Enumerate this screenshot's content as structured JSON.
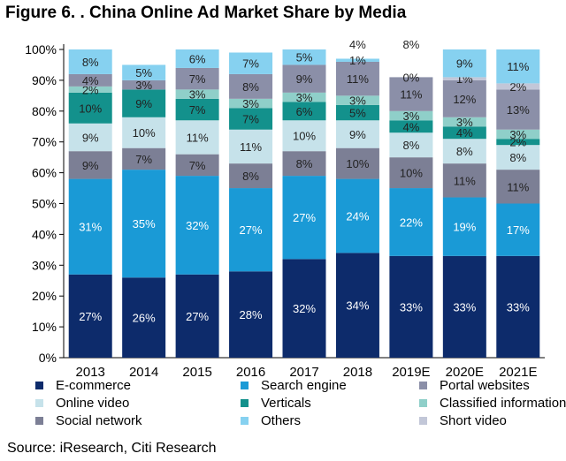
{
  "title": "Figure 6. . China Online Ad Market Share by Media",
  "source": "Source: iResearch, Citi Research",
  "colors": {
    "E-commerce": "#0d2b6b",
    "Search engine": "#1a9ad6",
    "Portal websites": "#8b8fa8",
    "Online video": "#c6e2ea",
    "Verticals": "#13918c",
    "Classified information": "#8fcfc9",
    "Social network": "#7c7f95",
    "Others": "#86d1f0",
    "Short video": "#c2c7d8"
  },
  "legend": [
    "E-commerce",
    "Search engine",
    "Portal websites",
    "Online video",
    "Verticals",
    "Classified information",
    "Social network",
    "Others",
    "Short video"
  ],
  "chart_data": {
    "type": "bar",
    "stacked": true,
    "title": "Figure 6. . China Online Ad Market Share by Media",
    "categories": [
      "2013",
      "2014",
      "2015",
      "2016",
      "2017",
      "2018",
      "2019E",
      "2020E",
      "2021E"
    ],
    "ylim": [
      0,
      100
    ],
    "yticks": [
      "0%",
      "10%",
      "20%",
      "30%",
      "40%",
      "50%",
      "60%",
      "70%",
      "80%",
      "90%",
      "100%"
    ],
    "grid": false,
    "legend_position": "bottom",
    "series": [
      {
        "name": "E-commerce",
        "values": [
          27,
          26,
          27,
          28,
          32,
          34,
          33,
          33,
          33
        ]
      },
      {
        "name": "Search engine",
        "values": [
          31,
          35,
          32,
          27,
          27,
          24,
          22,
          19,
          17
        ]
      },
      {
        "name": "Social network",
        "values": [
          9,
          7,
          7,
          8,
          8,
          10,
          10,
          11,
          11
        ]
      },
      {
        "name": "Online video",
        "values": [
          9,
          10,
          11,
          11,
          10,
          9,
          8,
          8,
          8
        ]
      },
      {
        "name": "Verticals",
        "values": [
          10,
          9,
          7,
          7,
          6,
          5,
          4,
          4,
          2
        ]
      },
      {
        "name": "Classified information",
        "values": [
          2,
          0,
          3,
          3,
          3,
          3,
          3,
          3,
          3
        ]
      },
      {
        "name": "Portal websites",
        "values": [
          4,
          3,
          7,
          8,
          9,
          11,
          11,
          12,
          13
        ]
      },
      {
        "name": "Short video",
        "values": [
          0,
          0,
          0,
          0,
          0,
          0,
          0,
          1,
          2
        ]
      },
      {
        "name": "Others",
        "values": [
          8,
          5,
          6,
          7,
          5,
          1,
          0,
          9,
          11
        ]
      }
    ],
    "data_labels": [
      [
        "27%",
        "26%",
        "27%",
        "28%",
        "32%",
        "34%",
        "33%",
        "33%",
        "33%"
      ],
      [
        "31%",
        "35%",
        "32%",
        "27%",
        "27%",
        "24%",
        "22%",
        "19%",
        "17%"
      ],
      [
        "9%",
        "7%",
        "7%",
        "8%",
        "8%",
        "10%",
        "10%",
        "11%",
        "11%"
      ],
      [
        "9%",
        "10%",
        "11%",
        "11%",
        "10%",
        "9%",
        "8%",
        "8%",
        "8%"
      ],
      [
        "10%",
        "9%",
        "7%",
        "7%",
        "6%",
        "5%",
        "4%",
        "4%",
        "2%"
      ],
      [
        "2%",
        "",
        "3%",
        "3%",
        "3%",
        "3%",
        "3%",
        "3%",
        "3%"
      ],
      [
        "4%",
        "3%",
        "7%",
        "8%",
        "9%",
        "11%",
        "11%",
        "12%",
        "13%"
      ],
      [
        "",
        "",
        "",
        "",
        "",
        "",
        "",
        "1%",
        "2%"
      ],
      [
        "8%",
        "5%",
        "6%",
        "7%",
        "5%",
        "1%",
        "0%",
        "9%",
        "11%"
      ]
    ],
    "extra_labels": [
      {
        "category_index": 5,
        "text": "4%"
      },
      {
        "category_index": 6,
        "text": "8%"
      }
    ]
  }
}
